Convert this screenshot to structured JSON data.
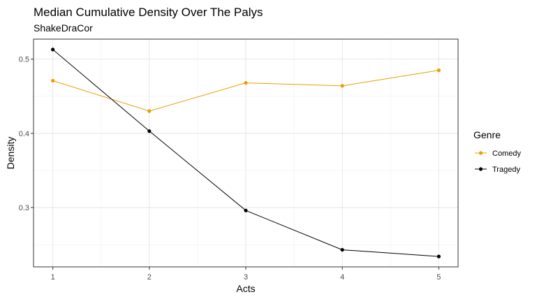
{
  "chart_data": {
    "type": "line",
    "title": "Median Cumulative Density Over The Palys",
    "subtitle": "ShakeDraCor",
    "xlabel": "Acts",
    "ylabel": "Density",
    "x": [
      1,
      2,
      3,
      4,
      5
    ],
    "xticks": [
      "1",
      "2",
      "3",
      "4",
      "5"
    ],
    "yticks": [
      "0.3",
      "0.4",
      "0.5"
    ],
    "xlim": [
      0.8,
      5.2
    ],
    "ylim": [
      0.22,
      0.527
    ],
    "grid": true,
    "legend": {
      "title": "Genre",
      "position": "right"
    },
    "series": [
      {
        "name": "Comedy",
        "color": "#E69F00",
        "values": [
          0.471,
          0.43,
          0.468,
          0.464,
          0.485
        ]
      },
      {
        "name": "Tragedy",
        "color": "#000000",
        "values": [
          0.513,
          0.403,
          0.296,
          0.243,
          0.234
        ]
      }
    ]
  }
}
